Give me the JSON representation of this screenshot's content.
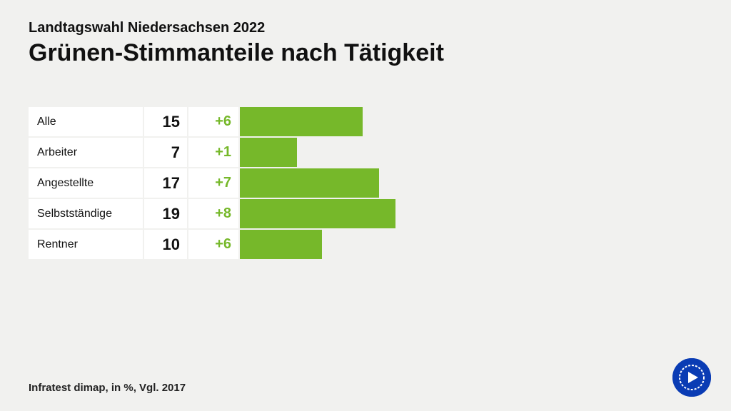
{
  "header": {
    "supertitle": "Landtagswahl Niedersachsen 2022",
    "title": "Grünen-Stimmanteile nach Tätigkeit"
  },
  "chart": {
    "type": "bar",
    "bar_color": "#76b82a",
    "change_color": "#76b82a",
    "cell_bg": "#ffffff",
    "max_value": 30,
    "rows": [
      {
        "label": "Alle",
        "value": 15,
        "change": "+6"
      },
      {
        "label": "Arbeiter",
        "value": 7,
        "change": "+1"
      },
      {
        "label": "Angestellte",
        "value": 17,
        "change": "+7"
      },
      {
        "label": "Selbstständige",
        "value": 19,
        "change": "+8"
      },
      {
        "label": "Rentner",
        "value": 10,
        "change": "+6"
      }
    ]
  },
  "footer": {
    "source": "Infratest dimap, in %, Vgl. 2017"
  },
  "logo": {
    "bg": "#0a3cb4",
    "inner": "#ffffff"
  }
}
